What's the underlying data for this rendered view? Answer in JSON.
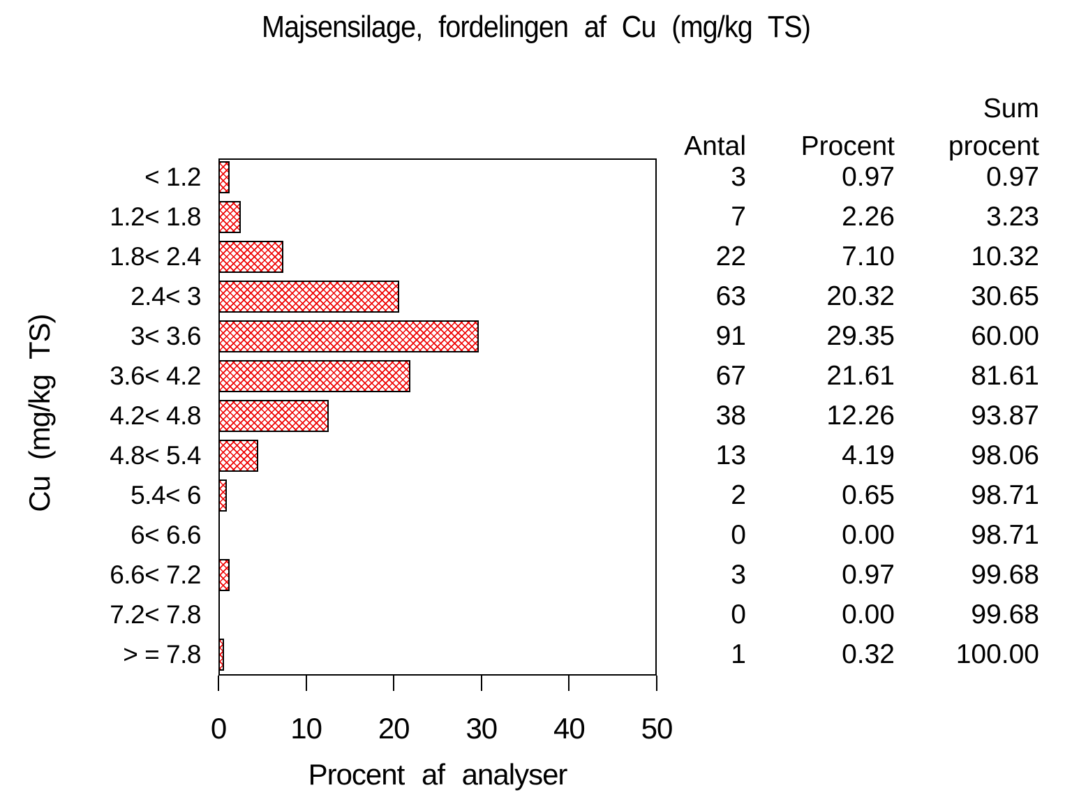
{
  "title": "Majsensilage, fordelingen af Cu (mg/kg TS)",
  "chart_data": {
    "type": "bar",
    "orientation": "horizontal",
    "title": "Majsensilage, fordelingen af Cu (mg/kg TS)",
    "xlabel": "Procent af analyser",
    "ylabel": "Cu (mg/kg TS)",
    "xlim": [
      0,
      50
    ],
    "xticks": [
      0,
      10,
      20,
      30,
      40,
      50
    ],
    "grid": false,
    "bar_fill_style": "diagonal-crosshatch",
    "bar_hatch_color": "#ee0000",
    "bar_border_color": "#000000",
    "categories": [
      "< 1.2",
      "1.2< 1.8",
      "1.8< 2.4",
      "2.4< 3",
      "3< 3.6",
      "3.6< 4.2",
      "4.2< 4.8",
      "4.8< 5.4",
      "5.4< 6",
      "6< 6.6",
      "6.6< 7.2",
      "7.2< 7.8",
      "> = 7.8"
    ],
    "values_percent": [
      0.97,
      2.26,
      7.1,
      20.32,
      29.35,
      21.61,
      12.26,
      4.19,
      0.65,
      0.0,
      0.97,
      0.0,
      0.32
    ],
    "counts": [
      3,
      7,
      22,
      63,
      91,
      67,
      38,
      13,
      2,
      0,
      3,
      0,
      1
    ]
  },
  "table": {
    "headers": {
      "antal": "Antal",
      "procent": "Procent",
      "sum_line1": "Sum",
      "sum_line2": "procent"
    },
    "rows": [
      {
        "antal": "3",
        "procent": "0.97",
        "sum": "0.97"
      },
      {
        "antal": "7",
        "procent": "2.26",
        "sum": "3.23"
      },
      {
        "antal": "22",
        "procent": "7.10",
        "sum": "10.32"
      },
      {
        "antal": "63",
        "procent": "20.32",
        "sum": "30.65"
      },
      {
        "antal": "91",
        "procent": "29.35",
        "sum": "60.00"
      },
      {
        "antal": "67",
        "procent": "21.61",
        "sum": "81.61"
      },
      {
        "antal": "38",
        "procent": "12.26",
        "sum": "93.87"
      },
      {
        "antal": "13",
        "procent": "4.19",
        "sum": "98.06"
      },
      {
        "antal": "2",
        "procent": "0.65",
        "sum": "98.71"
      },
      {
        "antal": "0",
        "procent": "0.00",
        "sum": "98.71"
      },
      {
        "antal": "3",
        "procent": "0.97",
        "sum": "99.68"
      },
      {
        "antal": "0",
        "procent": "0.00",
        "sum": "99.68"
      },
      {
        "antal": "1",
        "procent": "0.32",
        "sum": "100.00"
      }
    ]
  }
}
